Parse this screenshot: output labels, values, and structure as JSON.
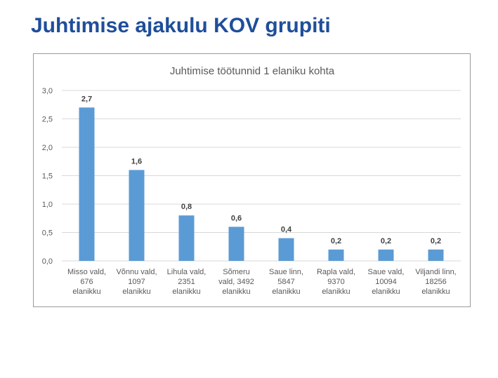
{
  "slide": {
    "title": "Juhtimise ajakulu KOV grupiti"
  },
  "chart_data": {
    "type": "bar",
    "title": "Juhtimise töötunnid 1 elaniku kohta",
    "categories": [
      [
        "Misso vald,",
        "676",
        "elanikku"
      ],
      [
        "Võnnu vald,",
        "1097",
        "elanikku"
      ],
      [
        "Lihula vald,",
        "2351",
        "elanikku"
      ],
      [
        "Sõmeru",
        "vald, 3492",
        "elanikku"
      ],
      [
        "Saue linn,",
        "5847",
        "elanikku"
      ],
      [
        "Rapla vald,",
        "9370",
        "elanikku"
      ],
      [
        "Saue vald,",
        "10094",
        "elanikku"
      ],
      [
        "Viljandi linn,",
        "18256",
        "elanikku"
      ]
    ],
    "values": [
      2.7,
      1.6,
      0.8,
      0.6,
      0.4,
      0.2,
      0.2,
      0.2
    ],
    "data_labels": [
      "2,7",
      "1,6",
      "0,8",
      "0,6",
      "0,4",
      "0,2",
      "0,2",
      "0,2"
    ],
    "yticks": [
      0,
      0.5,
      1.0,
      1.5,
      2.0,
      2.5,
      3.0
    ],
    "ytick_labels": [
      "0,0",
      "0,5",
      "1,0",
      "1,5",
      "2,0",
      "2,5",
      "3,0"
    ],
    "ylim": [
      0,
      3.0
    ],
    "grid": true,
    "legend": "none",
    "bar_color": "#5b9bd5"
  }
}
